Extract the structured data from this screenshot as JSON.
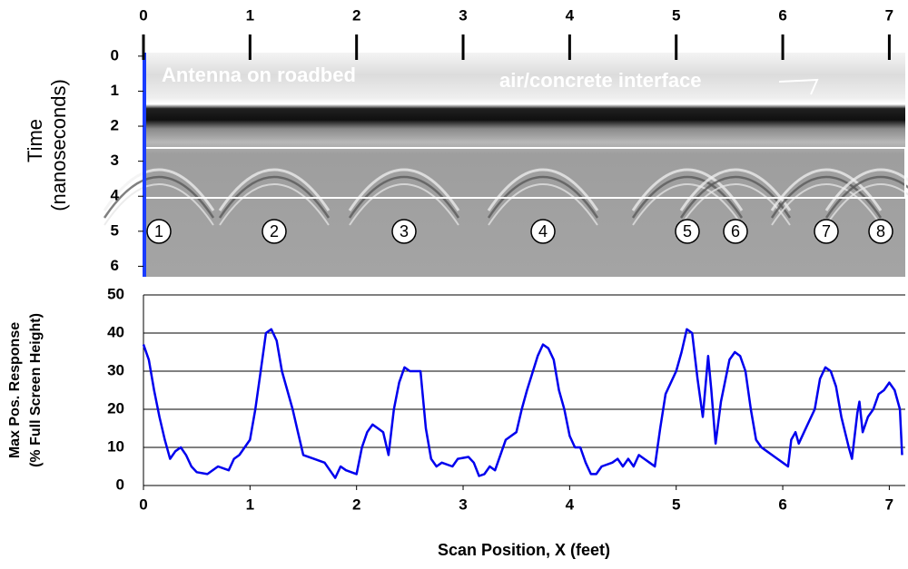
{
  "chart_data": [
    {
      "type": "radargram",
      "ylabel_lines": [
        "Time",
        "(nanoseconds)"
      ],
      "annotations": [
        "Antenna on roadbed",
        "air/concrete interface"
      ],
      "markers": [
        "1",
        "2",
        "3",
        "4",
        "5",
        "6",
        "7",
        "8"
      ],
      "xlim": [
        0,
        7.15
      ],
      "xticks": [
        0,
        1,
        2,
        3,
        4,
        5,
        6,
        7
      ],
      "ylim": [
        -0.1,
        6.3
      ],
      "yticks": [
        0,
        1,
        2,
        3,
        4,
        5,
        6
      ]
    },
    {
      "type": "line",
      "ylabel_lines": [
        "Max Pos. Response",
        "(% Full Screen Height)"
      ],
      "xlabel": "Scan Position,  X (feet)",
      "color": "#0000ee",
      "grid": true,
      "xlim": [
        0,
        7.15
      ],
      "xticks": [
        0,
        1,
        2,
        3,
        4,
        5,
        6,
        7
      ],
      "ylim": [
        0,
        50
      ],
      "yticks": [
        0,
        10,
        20,
        30,
        40,
        50
      ],
      "x": [
        0,
        0.05,
        0.1,
        0.15,
        0.2,
        0.25,
        0.3,
        0.35,
        0.4,
        0.45,
        0.5,
        0.6,
        0.7,
        0.8,
        0.85,
        0.9,
        1.0,
        1.05,
        1.1,
        1.15,
        1.2,
        1.25,
        1.3,
        1.4,
        1.45,
        1.5,
        1.6,
        1.7,
        1.75,
        1.8,
        1.85,
        1.9,
        2.0,
        2.05,
        2.1,
        2.15,
        2.2,
        2.25,
        2.3,
        2.35,
        2.4,
        2.45,
        2.5,
        2.6,
        2.65,
        2.7,
        2.75,
        2.8,
        2.9,
        2.95,
        3.05,
        3.1,
        3.15,
        3.2,
        3.25,
        3.3,
        3.35,
        3.4,
        3.5,
        3.55,
        3.6,
        3.7,
        3.75,
        3.8,
        3.85,
        3.9,
        3.95,
        4.0,
        4.05,
        4.1,
        4.15,
        4.2,
        4.25,
        4.3,
        4.4,
        4.45,
        4.5,
        4.55,
        4.6,
        4.65,
        4.7,
        4.75,
        4.8,
        4.85,
        4.9,
        5.0,
        5.05,
        5.1,
        5.15,
        5.2,
        5.25,
        5.3,
        5.33,
        5.37,
        5.42,
        5.5,
        5.55,
        5.6,
        5.65,
        5.7,
        5.75,
        5.8,
        5.85,
        5.9,
        5.95,
        6.0,
        6.05,
        6.08,
        6.12,
        6.15,
        6.2,
        6.3,
        6.35,
        6.4,
        6.45,
        6.5,
        6.55,
        6.62,
        6.65,
        6.7,
        6.72,
        6.75,
        6.8,
        6.85,
        6.9,
        6.95,
        7.0,
        7.05,
        7.1,
        7.12
      ],
      "values": [
        37,
        33,
        25,
        18,
        12,
        7,
        9,
        10,
        8,
        5,
        3.5,
        3,
        5,
        4,
        7,
        8,
        12,
        20,
        30,
        40,
        41,
        38,
        30,
        20,
        14,
        8,
        7,
        6,
        4,
        2,
        5,
        4,
        3,
        10,
        14,
        16,
        15,
        14,
        8,
        20,
        27,
        31,
        30,
        30,
        15,
        7,
        5,
        6,
        5,
        7,
        7.5,
        6,
        2.5,
        3,
        5,
        4,
        8,
        12,
        14,
        20,
        25,
        34,
        37,
        36,
        33,
        25,
        20,
        13,
        10,
        10,
        6,
        3,
        3,
        5,
        6,
        7,
        5,
        7,
        5,
        8,
        7,
        6,
        5,
        15,
        24,
        30,
        35,
        41,
        40,
        28,
        18,
        34,
        25,
        11,
        22,
        33,
        35,
        34,
        30,
        20,
        12,
        10,
        9,
        8,
        7,
        6,
        5,
        12,
        14,
        11,
        14,
        20,
        28,
        31,
        30,
        26,
        18,
        10,
        7,
        19,
        22,
        14,
        18,
        20,
        24,
        25,
        27,
        25,
        20,
        8
      ]
    }
  ]
}
